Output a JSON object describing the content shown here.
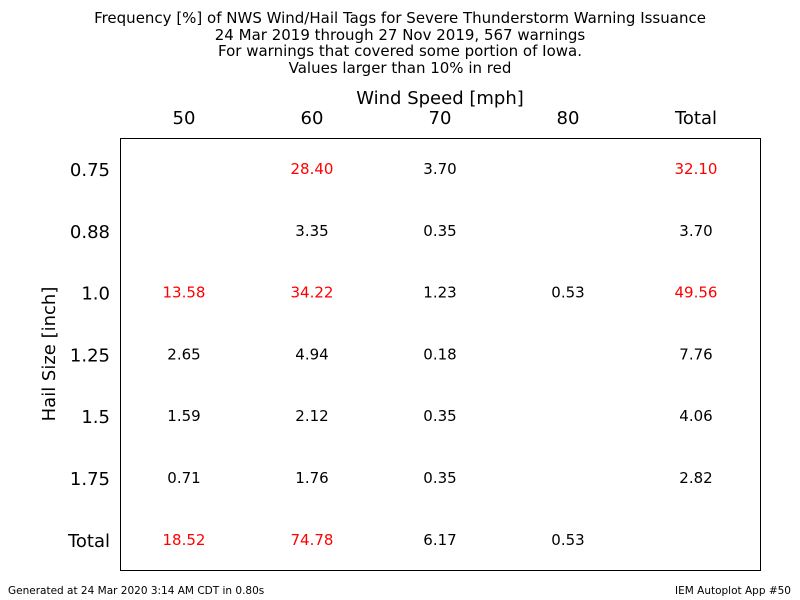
{
  "title_lines": [
    "Frequency [%] of NWS Wind/Hail Tags for Severe Thunderstorm Warning Issuance",
    "24 Mar 2019 through 27 Nov 2019, 567 warnings",
    "For warnings that covered some portion of Iowa.",
    "Values larger than 10% in red"
  ],
  "chart_data": {
    "type": "table",
    "xlabel": "Wind Speed [mph]",
    "ylabel": "Hail Size [inch]",
    "columns": [
      "50",
      "60",
      "70",
      "80",
      "Total"
    ],
    "rows": [
      "0.75",
      "0.88",
      "1.0",
      "1.25",
      "1.5",
      "1.75",
      "Total"
    ],
    "cells": [
      [
        "",
        "28.40",
        "3.70",
        "",
        "32.10"
      ],
      [
        "",
        "3.35",
        "0.35",
        "",
        "3.70"
      ],
      [
        "13.58",
        "34.22",
        "1.23",
        "0.53",
        "49.56"
      ],
      [
        "2.65",
        "4.94",
        "0.18",
        "",
        "7.76"
      ],
      [
        "1.59",
        "2.12",
        "0.35",
        "",
        "4.06"
      ],
      [
        "0.71",
        "1.76",
        "0.35",
        "",
        "2.82"
      ],
      [
        "18.52",
        "74.78",
        "6.17",
        "0.53",
        ""
      ]
    ],
    "highlight_threshold": 10,
    "highlight_color": "#ff0000",
    "normal_color": "#000000"
  },
  "footer": {
    "left": "Generated at 24 Mar 2020 3:14 AM CDT in 0.80s",
    "right": "IEM Autoplot App #50"
  }
}
